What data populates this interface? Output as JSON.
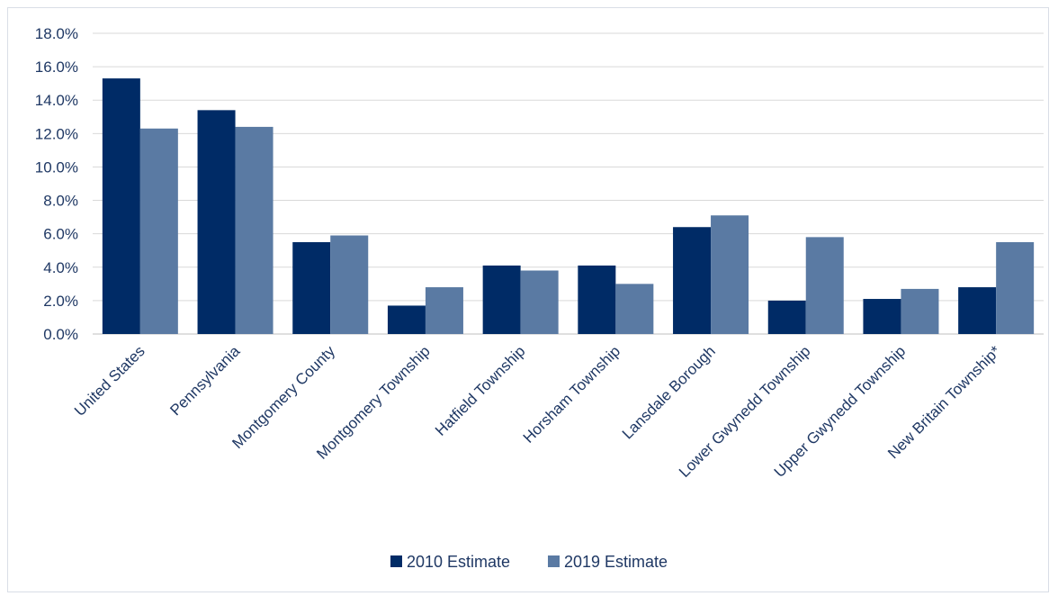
{
  "chart_data": {
    "type": "bar",
    "categories": [
      "United States",
      "Pennsylvania",
      "Montgomery County",
      "Montgomery Township",
      "Hatfield Township",
      "Horsham Township",
      "Lansdale Borough",
      "Lower Gwynedd Township",
      "Upper Gwynedd Township",
      "New Britain Township*"
    ],
    "series": [
      {
        "name": "2010 Estimate",
        "color": "#002b66",
        "values": [
          15.3,
          13.4,
          5.5,
          1.7,
          4.1,
          4.1,
          6.4,
          2.0,
          2.1,
          2.8
        ]
      },
      {
        "name": "2019 Estimate",
        "color": "#5a7aa3",
        "values": [
          12.3,
          12.4,
          5.9,
          2.8,
          3.8,
          3.0,
          7.1,
          5.8,
          2.7,
          5.5
        ]
      }
    ],
    "ylim": [
      0,
      18
    ],
    "yticks": [
      "0.0%",
      "2.0%",
      "4.0%",
      "6.0%",
      "8.0%",
      "10.0%",
      "12.0%",
      "14.0%",
      "16.0%",
      "18.0%"
    ],
    "title": "",
    "xlabel": "",
    "ylabel": "",
    "grid": true,
    "legend_position": "bottom"
  }
}
